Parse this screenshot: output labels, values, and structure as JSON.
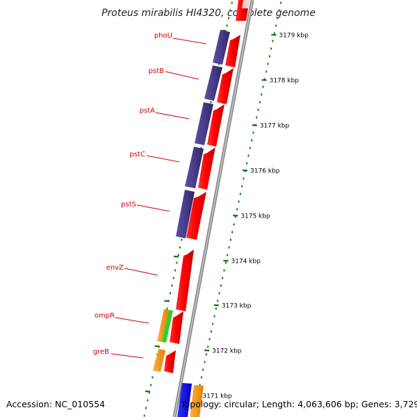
{
  "title": "Proteus mirabilis HI4320, complete genome",
  "footer": {
    "accession": "Accession: NC_010554",
    "topology": "Topology: circular; Length: 4,063,606 bp; Genes: 3,729"
  },
  "colors": {
    "backbone": "#9a9a9a",
    "forward_gene": "#ff0000",
    "reverse_gene": "#483d8b",
    "orange_feature": "#ff9900",
    "green_feature": "#33cc33",
    "blue_feature": "#0000ee",
    "tick": "#117711",
    "label": "#cc0000"
  },
  "ruler": [
    {
      "label": "3179 kbp"
    },
    {
      "label": "3178 kbp"
    },
    {
      "label": "3177 kbp"
    },
    {
      "label": "3176 kbp"
    },
    {
      "label": "3175 kbp"
    },
    {
      "label": "3174 kbp"
    },
    {
      "label": "3173 kbp"
    },
    {
      "label": "3172 kbp"
    },
    {
      "label": "3171 kbp"
    }
  ],
  "gene_labels": [
    {
      "label": "phoU"
    },
    {
      "label": "pstB"
    },
    {
      "label": "pstA"
    },
    {
      "label": "pstC"
    },
    {
      "label": "pstS"
    },
    {
      "label": "envZ"
    },
    {
      "label": "ompR"
    },
    {
      "label": "greB"
    }
  ]
}
